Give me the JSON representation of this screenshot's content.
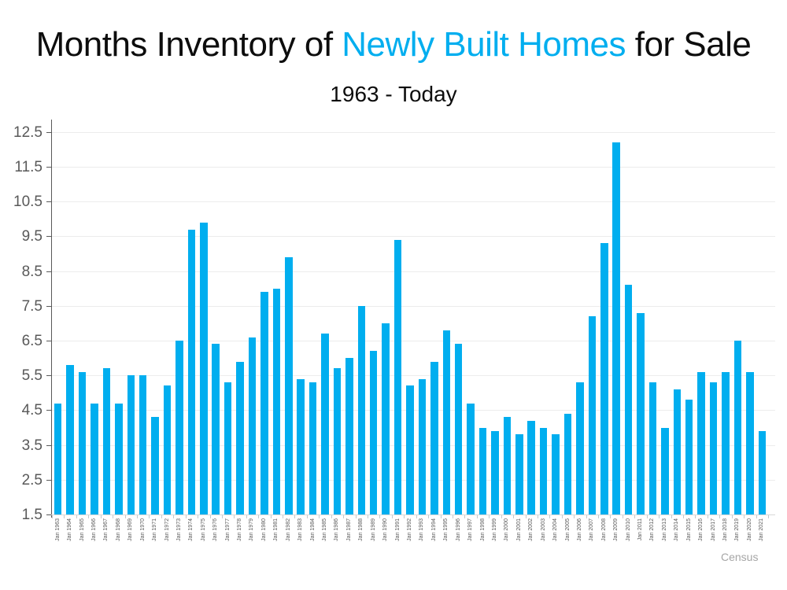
{
  "page": {
    "background": "#ffffff"
  },
  "chart_data": {
    "type": "bar",
    "title": "Months Inventory of Newly Built Homes for Sale",
    "title_parts": {
      "pre": "Months Inventory of ",
      "highlight": "Newly Built Homes",
      "post": " for Sale"
    },
    "subtitle": "1963 - Today",
    "xlabel": "",
    "ylabel": "",
    "ylim": [
      1.5,
      12.5
    ],
    "yticks": [
      1.5,
      2.5,
      3.5,
      4.5,
      5.5,
      6.5,
      7.5,
      8.5,
      9.5,
      10.5,
      11.5,
      12.5
    ],
    "grid": true,
    "legend": "none",
    "bar_color": "#00AEEF",
    "title_highlight_color": "#00AEEF",
    "title_color": "#0d0d0d",
    "axis_color": "#595959",
    "gridline_color": "#ECECEC",
    "tick_label_color": "#595959",
    "minor_tick_color": "#C9C9C9",
    "baseline_color": "#D9D9D9",
    "source_color": "#A6A6A6",
    "source_label": "Census",
    "categories": [
      "Jan 1963",
      "Jan 1964",
      "Jan 1965",
      "Jan 1966",
      "Jan 1967",
      "Jan 1968",
      "Jan 1969",
      "Jan 1970",
      "Jan 1971",
      "Jan 1972",
      "Jan 1973",
      "Jan 1974",
      "Jan 1975",
      "Jan 1976",
      "Jan 1977",
      "Jan 1978",
      "Jan 1979",
      "Jan 1980",
      "Jan 1981",
      "Jan 1982",
      "Jan 1983",
      "Jan 1984",
      "Jan 1985",
      "Jan 1986",
      "Jan 1987",
      "Jan 1988",
      "Jan 1989",
      "Jan 1990",
      "Jan 1991",
      "Jan 1992",
      "Jan 1993",
      "Jan 1994",
      "Jan 1995",
      "Jan 1996",
      "Jan 1997",
      "Jan 1998",
      "Jan 1999",
      "Jan 2000",
      "Jan 2001",
      "Jan 2002",
      "Jan 2003",
      "Jan 2004",
      "Jan 2005",
      "Jan 2006",
      "Jan 2007",
      "Jan 2008",
      "Jan 2009",
      "Jan 2010",
      "Jan 2011",
      "Jan 2012",
      "Jan 2013",
      "Jan 2014",
      "Jan 2015",
      "Jan 2016",
      "Jan 2017",
      "Jan 2018",
      "Jan 2019",
      "Jan 2020",
      "Jan 2021"
    ],
    "values": [
      4.7,
      5.8,
      5.6,
      4.7,
      5.7,
      4.7,
      5.5,
      5.5,
      4.3,
      5.2,
      6.5,
      9.7,
      9.9,
      6.4,
      5.3,
      5.9,
      6.6,
      7.9,
      8.0,
      8.9,
      5.4,
      5.3,
      6.7,
      5.7,
      6.0,
      7.5,
      6.2,
      7.0,
      9.4,
      5.2,
      5.4,
      5.9,
      6.8,
      6.4,
      4.7,
      4.0,
      3.9,
      4.3,
      3.8,
      4.2,
      4.0,
      3.8,
      4.4,
      5.3,
      7.2,
      9.3,
      12.2,
      8.1,
      7.3,
      5.3,
      4.0,
      5.1,
      4.8,
      5.6,
      5.3,
      5.6,
      6.5,
      5.6,
      3.9
    ]
  }
}
